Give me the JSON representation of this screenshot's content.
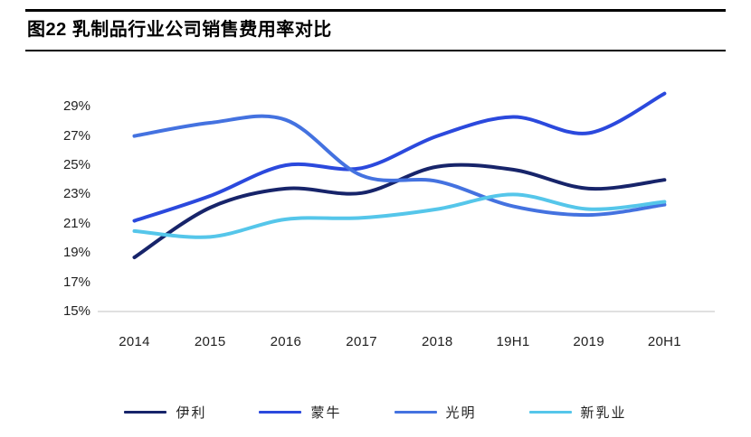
{
  "title": {
    "label": "图22 乳制品行业公司销售费用率对比"
  },
  "chart_data": {
    "type": "line",
    "title": "图22 乳制品行业公司销售费用率对比",
    "categories": [
      "2014",
      "2015",
      "2016",
      "2017",
      "2018",
      "19H1",
      "2019",
      "20H1"
    ],
    "series": [
      {
        "name": "伊利",
        "color": "#17246a",
        "values": [
          18.7,
          22.1,
          23.4,
          23.1,
          24.9,
          24.7,
          23.4,
          24.0
        ]
      },
      {
        "name": "蒙牛",
        "color": "#2b49dd",
        "values": [
          21.2,
          22.9,
          25.0,
          24.8,
          27.0,
          28.3,
          27.2,
          29.9
        ]
      },
      {
        "name": "光明",
        "color": "#4472e0",
        "values": [
          27.0,
          27.9,
          28.1,
          24.3,
          23.9,
          22.2,
          21.6,
          22.3
        ]
      },
      {
        "name": "新乳业",
        "color": "#55c6ea",
        "values": [
          20.5,
          20.1,
          21.3,
          21.4,
          22.0,
          23.0,
          22.0,
          22.5
        ]
      }
    ],
    "xlabel": "",
    "ylabel": "",
    "yticks": [
      29,
      27,
      25,
      23,
      21,
      19,
      17,
      15
    ],
    "ytick_suffix": "%",
    "ylim": [
      15,
      30.5
    ],
    "grid": false,
    "axis_line_color": "#d6d6d6",
    "legend_position": "bottom"
  }
}
